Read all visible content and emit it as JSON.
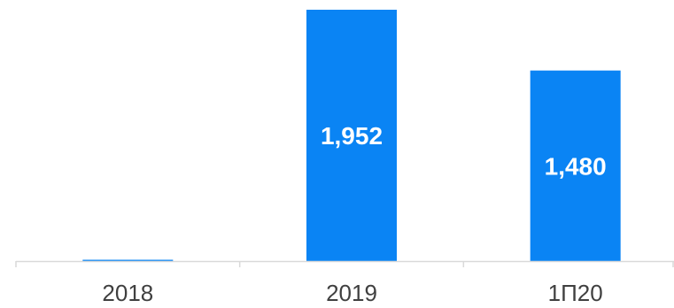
{
  "chart_data": {
    "type": "bar",
    "categories": [
      "2018",
      "2019",
      "1П20"
    ],
    "values": [
      8,
      1952,
      1480
    ],
    "data_labels": [
      "",
      "1,952",
      "1,480"
    ],
    "ylim": [
      0,
      1952
    ],
    "bar_color": "#0A84F4",
    "label_color": "#FFFFFF",
    "axis_color": "#D9D9D9",
    "tick_label_color": "#404040",
    "grid": false,
    "legend": "none"
  }
}
